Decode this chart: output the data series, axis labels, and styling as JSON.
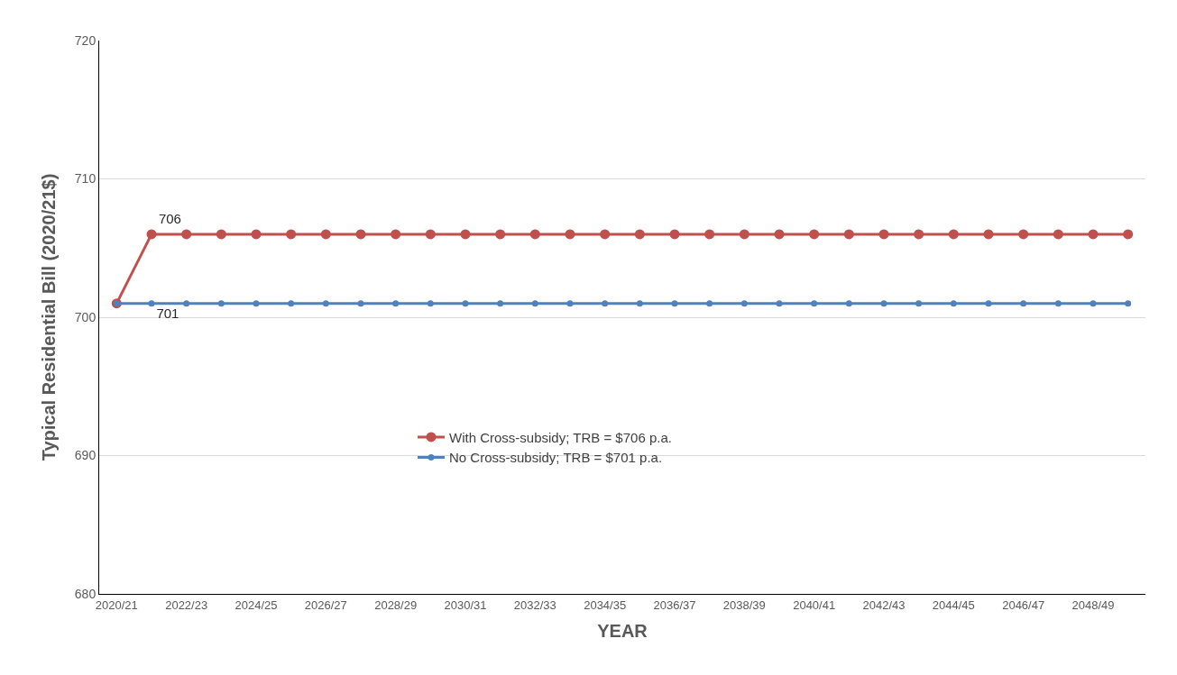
{
  "chart_data": {
    "type": "line",
    "xlabel": "YEAR",
    "ylabel": "Typical Residential Bill (2020/21$)",
    "categories": [
      "2020/21",
      null,
      "2022/23",
      null,
      "2024/25",
      null,
      "2026/27",
      null,
      "2028/29",
      null,
      "2030/31",
      null,
      "2032/33",
      null,
      "2034/35",
      null,
      "2036/37",
      null,
      "2038/39",
      null,
      "2040/41",
      null,
      "2042/43",
      null,
      "2044/45",
      null,
      "2046/47",
      null,
      "2048/49",
      null
    ],
    "series": [
      {
        "name": "With Cross-subsidy; TRB = $706 p.a.",
        "color": "#c0504d",
        "values": [
          701,
          706,
          706,
          706,
          706,
          706,
          706,
          706,
          706,
          706,
          706,
          706,
          706,
          706,
          706,
          706,
          706,
          706,
          706,
          706,
          706,
          706,
          706,
          706,
          706,
          706,
          706,
          706,
          706,
          706
        ],
        "value_labels": [
          null,
          "706",
          null,
          null,
          null,
          null,
          null,
          null,
          null,
          null,
          null,
          null,
          null,
          null,
          null,
          null,
          null,
          null,
          null,
          null,
          null,
          null,
          null,
          null,
          null,
          null,
          null,
          null,
          null,
          null
        ]
      },
      {
        "name": "No Cross-subsidy; TRB = $701 p.a.",
        "color": "#4f81bd",
        "values": [
          701,
          701,
          701,
          701,
          701,
          701,
          701,
          701,
          701,
          701,
          701,
          701,
          701,
          701,
          701,
          701,
          701,
          701,
          701,
          701,
          701,
          701,
          701,
          701,
          701,
          701,
          701,
          701,
          701,
          701
        ],
        "value_labels": [
          null,
          "701",
          null,
          null,
          null,
          null,
          null,
          null,
          null,
          null,
          null,
          null,
          null,
          null,
          null,
          null,
          null,
          null,
          null,
          null,
          null,
          null,
          null,
          null,
          null,
          null,
          null,
          null,
          null,
          null
        ]
      }
    ],
    "ylim": [
      680,
      720
    ],
    "yticks": [
      680,
      690,
      700,
      710,
      720
    ],
    "grid": "y",
    "legend": "center",
    "marker": "circle",
    "line_style": "solid"
  }
}
